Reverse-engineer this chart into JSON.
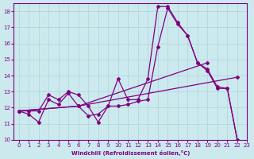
{
  "xlabel": "Windchill (Refroidissement éolien,°C)",
  "xlim": [
    -0.5,
    23
  ],
  "ylim": [
    10,
    18.5
  ],
  "xticks": [
    0,
    1,
    2,
    3,
    4,
    5,
    6,
    7,
    8,
    9,
    10,
    11,
    12,
    13,
    14,
    15,
    16,
    17,
    18,
    19,
    20,
    21,
    22,
    23
  ],
  "yticks": [
    10,
    11,
    12,
    13,
    14,
    15,
    16,
    17,
    18
  ],
  "background_color": "#cce9ee",
  "line_color": "#800080",
  "grid_color": "#aad4db",
  "line1_x": [
    0,
    1,
    2,
    3,
    4,
    5,
    6,
    7,
    8,
    9,
    10,
    11,
    12,
    13,
    14,
    15,
    16,
    17,
    18,
    19,
    20,
    21,
    22
  ],
  "line1_y": [
    11.8,
    11.8,
    11.8,
    12.8,
    12.5,
    13.0,
    12.8,
    12.1,
    11.1,
    12.1,
    13.8,
    12.5,
    12.5,
    13.8,
    18.3,
    18.3,
    17.3,
    16.5,
    14.8,
    14.4,
    13.3,
    13.2,
    10.0
  ],
  "line2_x": [
    0,
    1,
    2,
    3,
    4,
    5,
    6,
    7,
    8,
    9,
    10,
    11,
    12,
    13,
    14,
    15,
    16,
    17,
    18,
    19,
    20,
    21,
    22
  ],
  "line2_y": [
    11.8,
    11.6,
    11.1,
    12.5,
    12.2,
    12.9,
    12.1,
    11.5,
    11.6,
    12.1,
    12.1,
    12.2,
    12.4,
    12.5,
    15.8,
    18.2,
    17.2,
    16.5,
    14.8,
    14.3,
    13.2,
    13.2,
    10.0
  ],
  "line3_x": [
    0,
    6,
    19
  ],
  "line3_y": [
    11.8,
    12.1,
    14.8
  ],
  "line4_x": [
    0,
    6,
    22
  ],
  "line4_y": [
    11.8,
    12.1,
    13.9
  ]
}
